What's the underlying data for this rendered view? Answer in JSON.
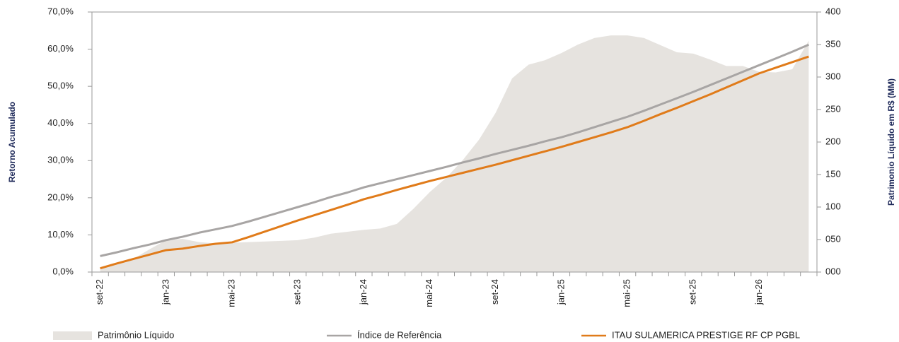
{
  "chart_data": {
    "type": "line",
    "y_label": "Retorno Acumulado",
    "y2_label": "Patrimonio Líquido em R$ (MM)",
    "categories": [
      "set-22",
      null,
      null,
      null,
      "jan-23",
      null,
      null,
      null,
      "mai-23",
      null,
      null,
      null,
      "set-23",
      null,
      null,
      null,
      "jan-24",
      null,
      null,
      null,
      "mai-24",
      null,
      null,
      null,
      "set-24",
      null,
      null,
      null,
      "jan-25",
      null,
      null,
      null,
      "mai-25",
      null,
      null,
      null,
      "set-25",
      null,
      null,
      null,
      "jan-26",
      null,
      null,
      null
    ],
    "series": [
      {
        "name": "Patrimônio Líquido",
        "type": "area",
        "axis": "y2",
        "color": "#e6e3df",
        "values": [
          5,
          12,
          20,
          35,
          49,
          51,
          46,
          44,
          45,
          46,
          47,
          48,
          49,
          53,
          59,
          62,
          65,
          67,
          74,
          97,
          123,
          145,
          172,
          204,
          245,
          298,
          319,
          326,
          337,
          350,
          360,
          364,
          364,
          360,
          349,
          338,
          336,
          327,
          317,
          317,
          308,
          307,
          312,
          356
        ]
      },
      {
        "name": "Índice de Referência",
        "type": "line",
        "color": "#a8a5a4",
        "values": [
          4.3,
          5.3,
          6.4,
          7.4,
          8.6,
          9.5,
          10.6,
          11.5,
          12.4,
          13.6,
          14.9,
          16.2,
          17.5,
          18.8,
          20.2,
          21.4,
          22.8,
          23.9,
          25.0,
          26.1,
          27.2,
          28.3,
          29.5,
          30.6,
          31.8,
          32.9,
          34.0,
          35.2,
          36.3,
          37.6,
          39.0,
          40.4,
          41.8,
          43.4,
          45.1,
          46.8,
          48.5,
          50.3,
          52.1,
          53.9,
          55.7,
          57.5,
          59.3,
          61.2
        ]
      },
      {
        "name": "ITAU SULAMERICA PRESTIGE RF CP PGBL",
        "type": "line",
        "color": "#e07b1a",
        "values": [
          1.0,
          2.3,
          3.5,
          4.7,
          5.9,
          6.3,
          7.0,
          7.6,
          8.0,
          9.4,
          10.9,
          12.4,
          13.9,
          15.3,
          16.7,
          18.1,
          19.6,
          20.8,
          22.1,
          23.3,
          24.5,
          25.6,
          26.7,
          27.8,
          28.9,
          30.1,
          31.3,
          32.5,
          33.7,
          35.0,
          36.3,
          37.6,
          39.0,
          40.7,
          42.5,
          44.2,
          46.0,
          47.8,
          49.7,
          51.6,
          53.5,
          55.0,
          56.5,
          58.0
        ]
      }
    ],
    "ylim": [
      0,
      70
    ],
    "yticks": [
      {
        "value": 0,
        "label": "0,0%"
      },
      {
        "value": 10,
        "label": "10,0%"
      },
      {
        "value": 20,
        "label": "20,0%"
      },
      {
        "value": 30,
        "label": "30,0%"
      },
      {
        "value": 40,
        "label": "40,0%"
      },
      {
        "value": 50,
        "label": "50,0%"
      },
      {
        "value": 60,
        "label": "60,0%"
      },
      {
        "value": 70,
        "label": "70,0%"
      }
    ],
    "y2lim": [
      0,
      400
    ],
    "y2ticks": [
      {
        "value": 0,
        "label": "000"
      },
      {
        "value": 50,
        "label": "050"
      },
      100,
      150,
      200,
      250,
      300,
      350,
      400
    ],
    "legend": "bottom"
  }
}
